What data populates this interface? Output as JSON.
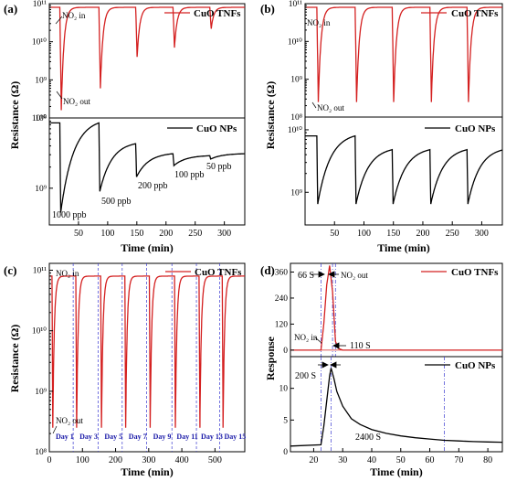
{
  "figure": {
    "colors": {
      "tnf": "#d42020",
      "np": "#000000",
      "day": "#1a1aa8",
      "vline": "#3a3ad0",
      "axis": "#000000"
    }
  },
  "chart_data": [
    {
      "panel_label": "(a)",
      "type": "line",
      "yscale": "log",
      "xlabel": "Time (min)",
      "ylabel": "Resistance (Ω)",
      "xlim": [
        0,
        335
      ],
      "xticks": [
        50,
        100,
        150,
        200,
        250,
        300
      ],
      "top": {
        "legend": "CuO TNFs",
        "ylim": [
          100000000.0,
          100000000000.0
        ],
        "ytick_labels": [
          "10⁸",
          "10⁹",
          "10¹⁰",
          "10¹¹"
        ],
        "annotations": [
          "NO₂ in",
          "NO₂ out"
        ],
        "baseline": 80000000000.0,
        "pulses": [
          {
            "x": 18,
            "min": 160000000.0
          },
          {
            "x": 85,
            "min": 600000000.0
          },
          {
            "x": 148,
            "min": 4000000000.0
          },
          {
            "x": 212,
            "min": 7000000000.0
          },
          {
            "x": 275,
            "min": 22000000000.0
          }
        ]
      },
      "bottom": {
        "legend": "CuO NPs",
        "ylim": [
          300000000.0,
          10000000000.0
        ],
        "ytick_labels": [
          "10⁹",
          "10¹⁰"
        ],
        "concentrations": [
          "1000 ppb",
          "500 ppb",
          "200 ppb",
          "100 ppb",
          "50 ppb"
        ],
        "pulses": [
          {
            "x": 18,
            "min": 450000000.0,
            "peak": 8500000000.0
          },
          {
            "x": 85,
            "min": 900000000.0,
            "peak": 4300000000.0
          },
          {
            "x": 148,
            "min": 1450000000.0,
            "peak": 3100000000.0
          },
          {
            "x": 212,
            "min": 2100000000.0,
            "peak": 2900000000.0
          },
          {
            "x": 275,
            "min": 2600000000.0,
            "peak": 3100000000.0
          }
        ]
      }
    },
    {
      "panel_label": "(b)",
      "type": "line",
      "yscale": "log",
      "xlabel": "Time (min)",
      "ylabel": "Resistance (Ω)",
      "xlim": [
        0,
        335
      ],
      "xticks": [
        50,
        100,
        150,
        200,
        250,
        300
      ],
      "top": {
        "legend": "CuO TNFs",
        "ylim": [
          100000000.0,
          100000000000.0
        ],
        "ytick_labels": [
          "10⁸",
          "10⁹",
          "10¹⁰",
          "10¹¹"
        ],
        "annotations": [
          "NO₂ in",
          "NO₂ out"
        ],
        "baseline": 80000000000.0,
        "pulses": [
          {
            "x": 20,
            "min": 250000000.0
          },
          {
            "x": 85,
            "min": 250000000.0
          },
          {
            "x": 148,
            "min": 250000000.0
          },
          {
            "x": 212,
            "min": 250000000.0
          },
          {
            "x": 275,
            "min": 250000000.0
          }
        ]
      },
      "bottom": {
        "legend": "CuO NPs",
        "ylim": [
          300000000.0,
          16000000000.0
        ],
        "ytick_labels": [
          "10⁹",
          "10¹⁰"
        ],
        "pulses": [
          {
            "x": 20,
            "min": 650000000.0,
            "peak": 8000000000.0
          },
          {
            "x": 85,
            "min": 650000000.0,
            "peak": 4800000000.0
          },
          {
            "x": 148,
            "min": 650000000.0,
            "peak": 4800000000.0
          },
          {
            "x": 212,
            "min": 650000000.0,
            "peak": 4800000000.0
          },
          {
            "x": 275,
            "min": 650000000.0,
            "peak": 4800000000.0
          }
        ]
      }
    },
    {
      "panel_label": "(c)",
      "type": "line",
      "yscale": "log",
      "xlabel": "Time (min)",
      "ylabel": "Resistance (Ω)",
      "xlim": [
        0,
        590
      ],
      "ylim": [
        100000000.0,
        130000000000.0
      ],
      "xticks": [
        0,
        100,
        200,
        300,
        400,
        500
      ],
      "ytick_labels": [
        "10⁸",
        "10⁹",
        "10¹⁰",
        "10¹¹"
      ],
      "legend": "CuO TNFs",
      "annotations": [
        "NO₂ in",
        "NO₂ out"
      ],
      "baseline": 80000000000.0,
      "pulses": [
        {
          "x": 8,
          "min": 250000000.0
        },
        {
          "x": 80,
          "min": 250000000.0
        },
        {
          "x": 155,
          "min": 250000000.0
        },
        {
          "x": 228,
          "min": 250000000.0
        },
        {
          "x": 302,
          "min": 250000000.0
        },
        {
          "x": 378,
          "min": 250000000.0
        },
        {
          "x": 452,
          "min": 250000000.0
        },
        {
          "x": 522,
          "min": 250000000.0
        }
      ],
      "day_labels": [
        "Day 1",
        "Day 3",
        "Day 5",
        "Day 7",
        "Day 9",
        "Day 11",
        "Day 13",
        "Day 15"
      ]
    },
    {
      "panel_label": "(d)",
      "type": "line",
      "yscale": "linear",
      "xlabel": "Time (min)",
      "ylabel": "Response",
      "xlim": [
        12,
        85
      ],
      "xticks": [
        20,
        30,
        40,
        50,
        60,
        70,
        80
      ],
      "top": {
        "legend": "CuO TNFs",
        "ylim": [
          -30,
          400
        ],
        "yticks": [
          0,
          120,
          240,
          360
        ],
        "annotations": [
          "66 S",
          "NO₂ out",
          "NO₂ in",
          "110 S"
        ],
        "series": {
          "x": [
            12,
            22.5,
            23.5,
            24.5,
            25.5,
            26.5,
            27.5,
            28.5,
            30,
            85
          ],
          "y": [
            0,
            0,
            120,
            300,
            390,
            270,
            40,
            8,
            0,
            0
          ]
        }
      },
      "bottom": {
        "legend": "CuO NPs",
        "ylim": [
          0,
          15
        ],
        "yticks": [
          0,
          5,
          10
        ],
        "annotations": [
          "200 S",
          "2400 S"
        ],
        "series": {
          "x": [
            12,
            22.5,
            23.5,
            24.5,
            25.5,
            26,
            27,
            28,
            30,
            33,
            36,
            40,
            45,
            50,
            55,
            60,
            65,
            70,
            75,
            80,
            85
          ],
          "y": [
            0.9,
            1.1,
            4,
            8,
            12,
            13.2,
            11.5,
            9.5,
            7.2,
            5.2,
            4.3,
            3.5,
            2.9,
            2.5,
            2.2,
            2.0,
            1.8,
            1.7,
            1.6,
            1.55,
            1.5
          ]
        }
      }
    }
  ]
}
